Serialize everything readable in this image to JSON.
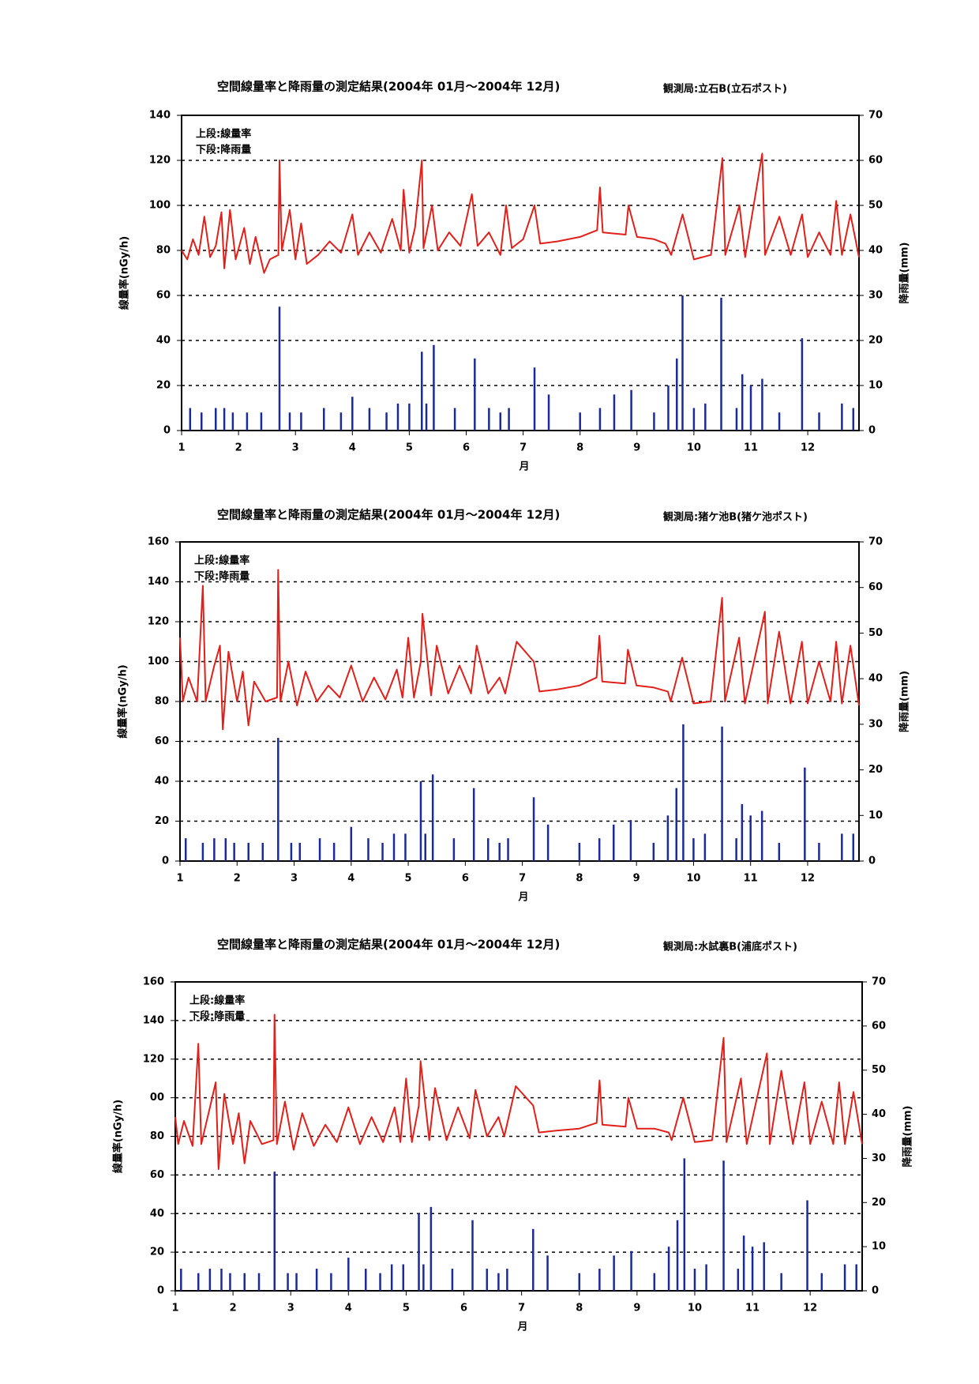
{
  "chart_data": [
    {
      "type": "line",
      "title": "空間線量率と降雨量の測定結果(2004年 01月～2004年 12月)",
      "subtitle": "観測局:立石B(立石ポスト)",
      "x_label": "月",
      "y_label": "線量率(nGy/h)",
      "y2_label": "降雨量(mm)",
      "xlim": [
        1,
        12.9
      ],
      "xticks": [
        1,
        2,
        3,
        4,
        5,
        6,
        7,
        8,
        9,
        10,
        11,
        12
      ],
      "ylim": [
        0,
        140
      ],
      "yticks": [
        0,
        20,
        40,
        60,
        80,
        100,
        120,
        140
      ],
      "y2lim": [
        0,
        70
      ],
      "y2ticks": [
        0,
        10,
        20,
        30,
        40,
        50,
        60,
        70
      ],
      "grid": true,
      "series": [
        {
          "name": "上段:線量率",
          "color": "#e0201a",
          "x": [
            1.0,
            1.1,
            1.2,
            1.3,
            1.4,
            1.5,
            1.6,
            1.7,
            1.75,
            1.85,
            1.95,
            2.1,
            2.2,
            2.3,
            2.45,
            2.55,
            2.7,
            2.72,
            2.76,
            2.9,
            3.0,
            3.1,
            3.2,
            3.4,
            3.6,
            3.8,
            4.0,
            4.1,
            4.3,
            4.5,
            4.7,
            4.85,
            4.9,
            5.0,
            5.1,
            5.22,
            5.25,
            5.4,
            5.5,
            5.7,
            5.9,
            6.1,
            6.2,
            6.4,
            6.6,
            6.7,
            6.8,
            7.0,
            7.2,
            7.3,
            7.6,
            8.0,
            8.3,
            8.35,
            8.4,
            8.8,
            8.85,
            9.0,
            9.3,
            9.5,
            9.6,
            9.8,
            10.0,
            10.3,
            10.5,
            10.55,
            10.8,
            10.9,
            11.2,
            11.25,
            11.5,
            11.7,
            11.9,
            12.0,
            12.2,
            12.4,
            12.5,
            12.6,
            12.75,
            12.9
          ],
          "values": [
            80,
            76,
            85,
            78,
            95,
            77,
            82,
            97,
            72,
            98,
            76,
            90,
            74,
            86,
            70,
            76,
            78,
            120,
            80,
            98,
            76,
            92,
            74,
            78,
            84,
            79,
            96,
            78,
            88,
            79,
            94,
            80,
            107,
            79,
            90,
            120,
            81,
            100,
            80,
            88,
            82,
            105,
            82,
            88,
            78,
            100,
            81,
            85,
            100,
            83,
            84,
            86,
            89,
            108,
            88,
            87,
            100,
            86,
            85,
            83,
            78,
            96,
            76,
            78,
            121,
            78,
            100,
            77,
            123,
            78,
            95,
            78,
            96,
            77,
            88,
            78,
            102,
            78,
            96,
            77
          ]
        },
        {
          "name": "下段:降雨量",
          "color": "#1a2a9a",
          "type": "bar",
          "axis": "y2",
          "x": [
            1.15,
            1.35,
            1.6,
            1.75,
            1.9,
            2.15,
            2.4,
            2.72,
            2.9,
            3.1,
            3.5,
            3.8,
            4.0,
            4.3,
            4.6,
            4.8,
            5.0,
            5.22,
            5.3,
            5.43,
            5.8,
            6.15,
            6.4,
            6.6,
            6.75,
            7.2,
            7.45,
            8.0,
            8.35,
            8.6,
            8.9,
            9.3,
            9.55,
            9.7,
            9.8,
            10.0,
            10.2,
            10.48,
            10.75,
            10.85,
            11.0,
            11.2,
            11.5,
            11.9,
            12.2,
            12.6,
            12.8
          ],
          "values": [
            5,
            4,
            5,
            5,
            4,
            4,
            4,
            27.5,
            4,
            4,
            5,
            4,
            7.5,
            5,
            4,
            6,
            6,
            17.5,
            6,
            19,
            5,
            16,
            5,
            4,
            5,
            14,
            8,
            4,
            5,
            8,
            9,
            4,
            10,
            16,
            30,
            5,
            6,
            29.5,
            5,
            12.5,
            10,
            11.5,
            4,
            20.5,
            4,
            6,
            5
          ]
        }
      ]
    },
    {
      "type": "line",
      "title": "空間線量率と降雨量の測定結果(2004年 01月～2004年 12月)",
      "subtitle": "観測局:猪ケ池B(猪ケ池ポスト)",
      "x_label": "月",
      "y_label": "線量率(nGy/h)",
      "y2_label": "降雨量(mm)",
      "xlim": [
        1,
        12.9
      ],
      "xticks": [
        1,
        2,
        3,
        4,
        5,
        6,
        7,
        8,
        9,
        10,
        11,
        12
      ],
      "ylim": [
        0,
        160
      ],
      "yticks": [
        0,
        20,
        40,
        60,
        80,
        100,
        120,
        140,
        160
      ],
      "y2lim": [
        0,
        70
      ],
      "y2ticks": [
        0,
        10,
        20,
        30,
        40,
        50,
        60,
        70
      ],
      "grid": true,
      "series": [
        {
          "name": "上段:線量率",
          "color": "#e0201a",
          "x": [
            1.0,
            1.05,
            1.15,
            1.3,
            1.4,
            1.45,
            1.6,
            1.7,
            1.75,
            1.85,
            2.0,
            2.1,
            2.2,
            2.3,
            2.5,
            2.7,
            2.72,
            2.76,
            2.9,
            3.05,
            3.2,
            3.4,
            3.6,
            3.8,
            4.0,
            4.2,
            4.4,
            4.6,
            4.8,
            4.9,
            5.0,
            5.1,
            5.22,
            5.25,
            5.4,
            5.5,
            5.7,
            5.9,
            6.1,
            6.2,
            6.4,
            6.6,
            6.7,
            6.9,
            7.2,
            7.3,
            7.6,
            8.0,
            8.3,
            8.35,
            8.4,
            8.8,
            8.85,
            9.0,
            9.3,
            9.55,
            9.6,
            9.8,
            10.0,
            10.3,
            10.5,
            10.55,
            10.8,
            10.9,
            11.25,
            11.3,
            11.5,
            11.7,
            11.9,
            12.0,
            12.2,
            12.4,
            12.5,
            12.6,
            12.75,
            12.9
          ],
          "values": [
            112,
            80,
            92,
            80,
            138,
            80,
            98,
            108,
            66,
            105,
            80,
            95,
            68,
            90,
            80,
            82,
            146,
            80,
            100,
            78,
            95,
            80,
            88,
            82,
            98,
            80,
            92,
            81,
            96,
            82,
            112,
            82,
            100,
            124,
            83,
            108,
            84,
            98,
            84,
            108,
            84,
            92,
            84,
            110,
            100,
            85,
            86,
            88,
            92,
            113,
            90,
            89,
            106,
            88,
            87,
            85,
            80,
            102,
            79,
            80,
            132,
            80,
            112,
            79,
            125,
            79,
            115,
            79,
            110,
            79,
            100,
            80,
            110,
            79,
            108,
            78
          ]
        },
        {
          "name": "下段:降雨量",
          "color": "#1a2a9a",
          "type": "bar",
          "axis": "y2",
          "x": [
            1.1,
            1.4,
            1.6,
            1.8,
            1.95,
            2.2,
            2.45,
            2.72,
            2.95,
            3.1,
            3.45,
            3.7,
            4.0,
            4.3,
            4.55,
            4.75,
            4.95,
            5.22,
            5.3,
            5.43,
            5.8,
            6.15,
            6.4,
            6.6,
            6.75,
            7.2,
            7.45,
            8.0,
            8.35,
            8.6,
            8.9,
            9.3,
            9.55,
            9.7,
            9.82,
            10.0,
            10.2,
            10.5,
            10.75,
            10.85,
            11.0,
            11.2,
            11.5,
            11.95,
            12.2,
            12.6,
            12.8
          ],
          "values": [
            5,
            4,
            5,
            5,
            4,
            4,
            4,
            27,
            4,
            4,
            5,
            4,
            7.5,
            5,
            4,
            6,
            6,
            17.5,
            6,
            19,
            5,
            16,
            5,
            4,
            5,
            14,
            8,
            4,
            5,
            8,
            9,
            4,
            10,
            16,
            30,
            5,
            6,
            29.5,
            5,
            12.5,
            10,
            11,
            4,
            20.5,
            4,
            6,
            6
          ]
        }
      ]
    },
    {
      "type": "line",
      "title": "空間線量率と降雨量の測定結果(2004年 01月～2004年 12月)",
      "subtitle": "観測局:水試裏B(浦底ポスト)",
      "x_label": "月",
      "y_label": "線量率(nGy/h)",
      "y2_label": "降雨量(mm)",
      "xlim": [
        1,
        12.9
      ],
      "xticks": [
        1,
        2,
        3,
        4,
        5,
        6,
        7,
        8,
        9,
        10,
        11,
        12
      ],
      "ylim": [
        0,
        160
      ],
      "yticks": [
        0,
        20,
        40,
        60,
        80,
        {
          "value": 100,
          "label": "00"
        },
        120,
        140,
        160
      ],
      "y2lim": [
        0,
        70
      ],
      "y2ticks": [
        0,
        10,
        20,
        30,
        40,
        50,
        60,
        70
      ],
      "grid": true,
      "series": [
        {
          "name": "上段:線量率",
          "color": "#e0201a",
          "x": [
            1.0,
            1.05,
            1.15,
            1.3,
            1.4,
            1.45,
            1.6,
            1.7,
            1.75,
            1.85,
            2.0,
            2.1,
            2.2,
            2.3,
            2.5,
            2.7,
            2.72,
            2.76,
            2.9,
            3.05,
            3.2,
            3.4,
            3.6,
            3.8,
            4.0,
            4.2,
            4.4,
            4.6,
            4.8,
            4.9,
            5.0,
            5.1,
            5.22,
            5.25,
            5.4,
            5.5,
            5.7,
            5.9,
            6.1,
            6.2,
            6.4,
            6.6,
            6.7,
            6.9,
            7.2,
            7.3,
            7.6,
            8.0,
            8.3,
            8.35,
            8.4,
            8.8,
            8.85,
            9.0,
            9.3,
            9.55,
            9.6,
            9.8,
            10.0,
            10.3,
            10.5,
            10.55,
            10.8,
            10.9,
            11.25,
            11.3,
            11.5,
            11.7,
            11.9,
            12.0,
            12.2,
            12.4,
            12.5,
            12.6,
            12.75,
            12.9
          ],
          "values": [
            90,
            76,
            88,
            75,
            128,
            76,
            95,
            108,
            63,
            102,
            76,
            92,
            66,
            88,
            76,
            78,
            143,
            76,
            98,
            73,
            92,
            75,
            86,
            77,
            95,
            76,
            90,
            77,
            95,
            77,
            110,
            77,
            96,
            119,
            78,
            105,
            78,
            95,
            79,
            104,
            80,
            90,
            80,
            106,
            96,
            82,
            83,
            84,
            87,
            109,
            86,
            85,
            100,
            84,
            84,
            82,
            78,
            100,
            77,
            78,
            131,
            77,
            110,
            76,
            123,
            76,
            114,
            76,
            108,
            76,
            98,
            76,
            108,
            76,
            103,
            76
          ]
        },
        {
          "name": "下段:降雨量",
          "color": "#1a2a9a",
          "type": "bar",
          "axis": "y2",
          "x": [
            1.1,
            1.4,
            1.6,
            1.8,
            1.95,
            2.2,
            2.45,
            2.72,
            2.95,
            3.1,
            3.45,
            3.7,
            4.0,
            4.3,
            4.55,
            4.75,
            4.95,
            5.22,
            5.3,
            5.43,
            5.8,
            6.15,
            6.4,
            6.6,
            6.75,
            7.2,
            7.45,
            8.0,
            8.35,
            8.6,
            8.9,
            9.3,
            9.55,
            9.7,
            9.82,
            10.0,
            10.2,
            10.5,
            10.75,
            10.85,
            11.0,
            11.2,
            11.5,
            11.95,
            12.2,
            12.6,
            12.8
          ],
          "values": [
            5,
            4,
            5,
            5,
            4,
            4,
            4,
            27,
            4,
            4,
            5,
            4,
            7.5,
            5,
            4,
            6,
            6,
            17.5,
            6,
            19,
            5,
            16,
            5,
            4,
            5,
            14,
            8,
            4,
            5,
            8,
            9,
            4,
            10,
            16,
            30,
            5,
            6,
            29.5,
            5,
            12.5,
            10,
            11,
            4,
            20.5,
            4,
            6,
            6
          ]
        }
      ]
    }
  ]
}
